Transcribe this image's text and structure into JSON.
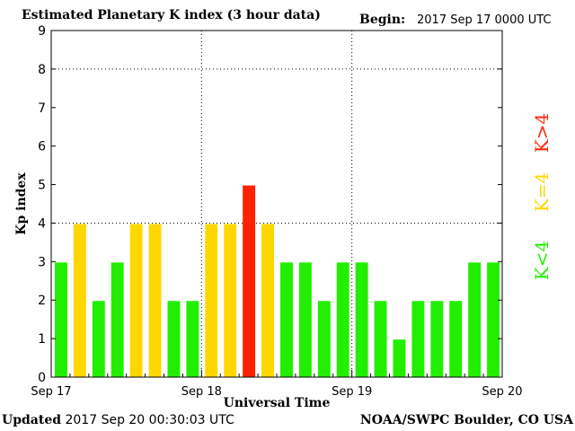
{
  "header": {
    "title": "Estimated Planetary K index (3 hour data)",
    "begin_label": "Begin:",
    "begin_value": "2017 Sep 17 0000 UTC"
  },
  "footer": {
    "updated_label": "Updated",
    "updated_value": "2017 Sep 20 00:30:03 UTC",
    "credit": "NOAA/SWPC Boulder, CO USA"
  },
  "legend": [
    {
      "label": "K<4",
      "color": "#22ee00"
    },
    {
      "label": "K=4",
      "color": "#ffd700"
    },
    {
      "label": "K>4",
      "color": "#ff2200"
    }
  ],
  "colors": {
    "low": "#22ee00",
    "equal4": "#ffd700",
    "high": "#ff2200"
  },
  "chart_data": {
    "type": "bar",
    "ylabel": "Kp index",
    "xlabel": "Universal Time",
    "ylim": [
      0,
      9
    ],
    "yticks": [
      "0",
      "1",
      "2",
      "3",
      "4",
      "5",
      "6",
      "7",
      "8",
      "9"
    ],
    "xticks": [
      "Sep 17",
      "Sep 18",
      "Sep 19",
      "Sep 20"
    ],
    "grid": "dotted at y=4,8 and day boundaries",
    "values": [
      3,
      4,
      2,
      3,
      4,
      4,
      2,
      2,
      4,
      4,
      5,
      4,
      3,
      3,
      2,
      3,
      3,
      2,
      1,
      2,
      2,
      2,
      3,
      3
    ]
  }
}
